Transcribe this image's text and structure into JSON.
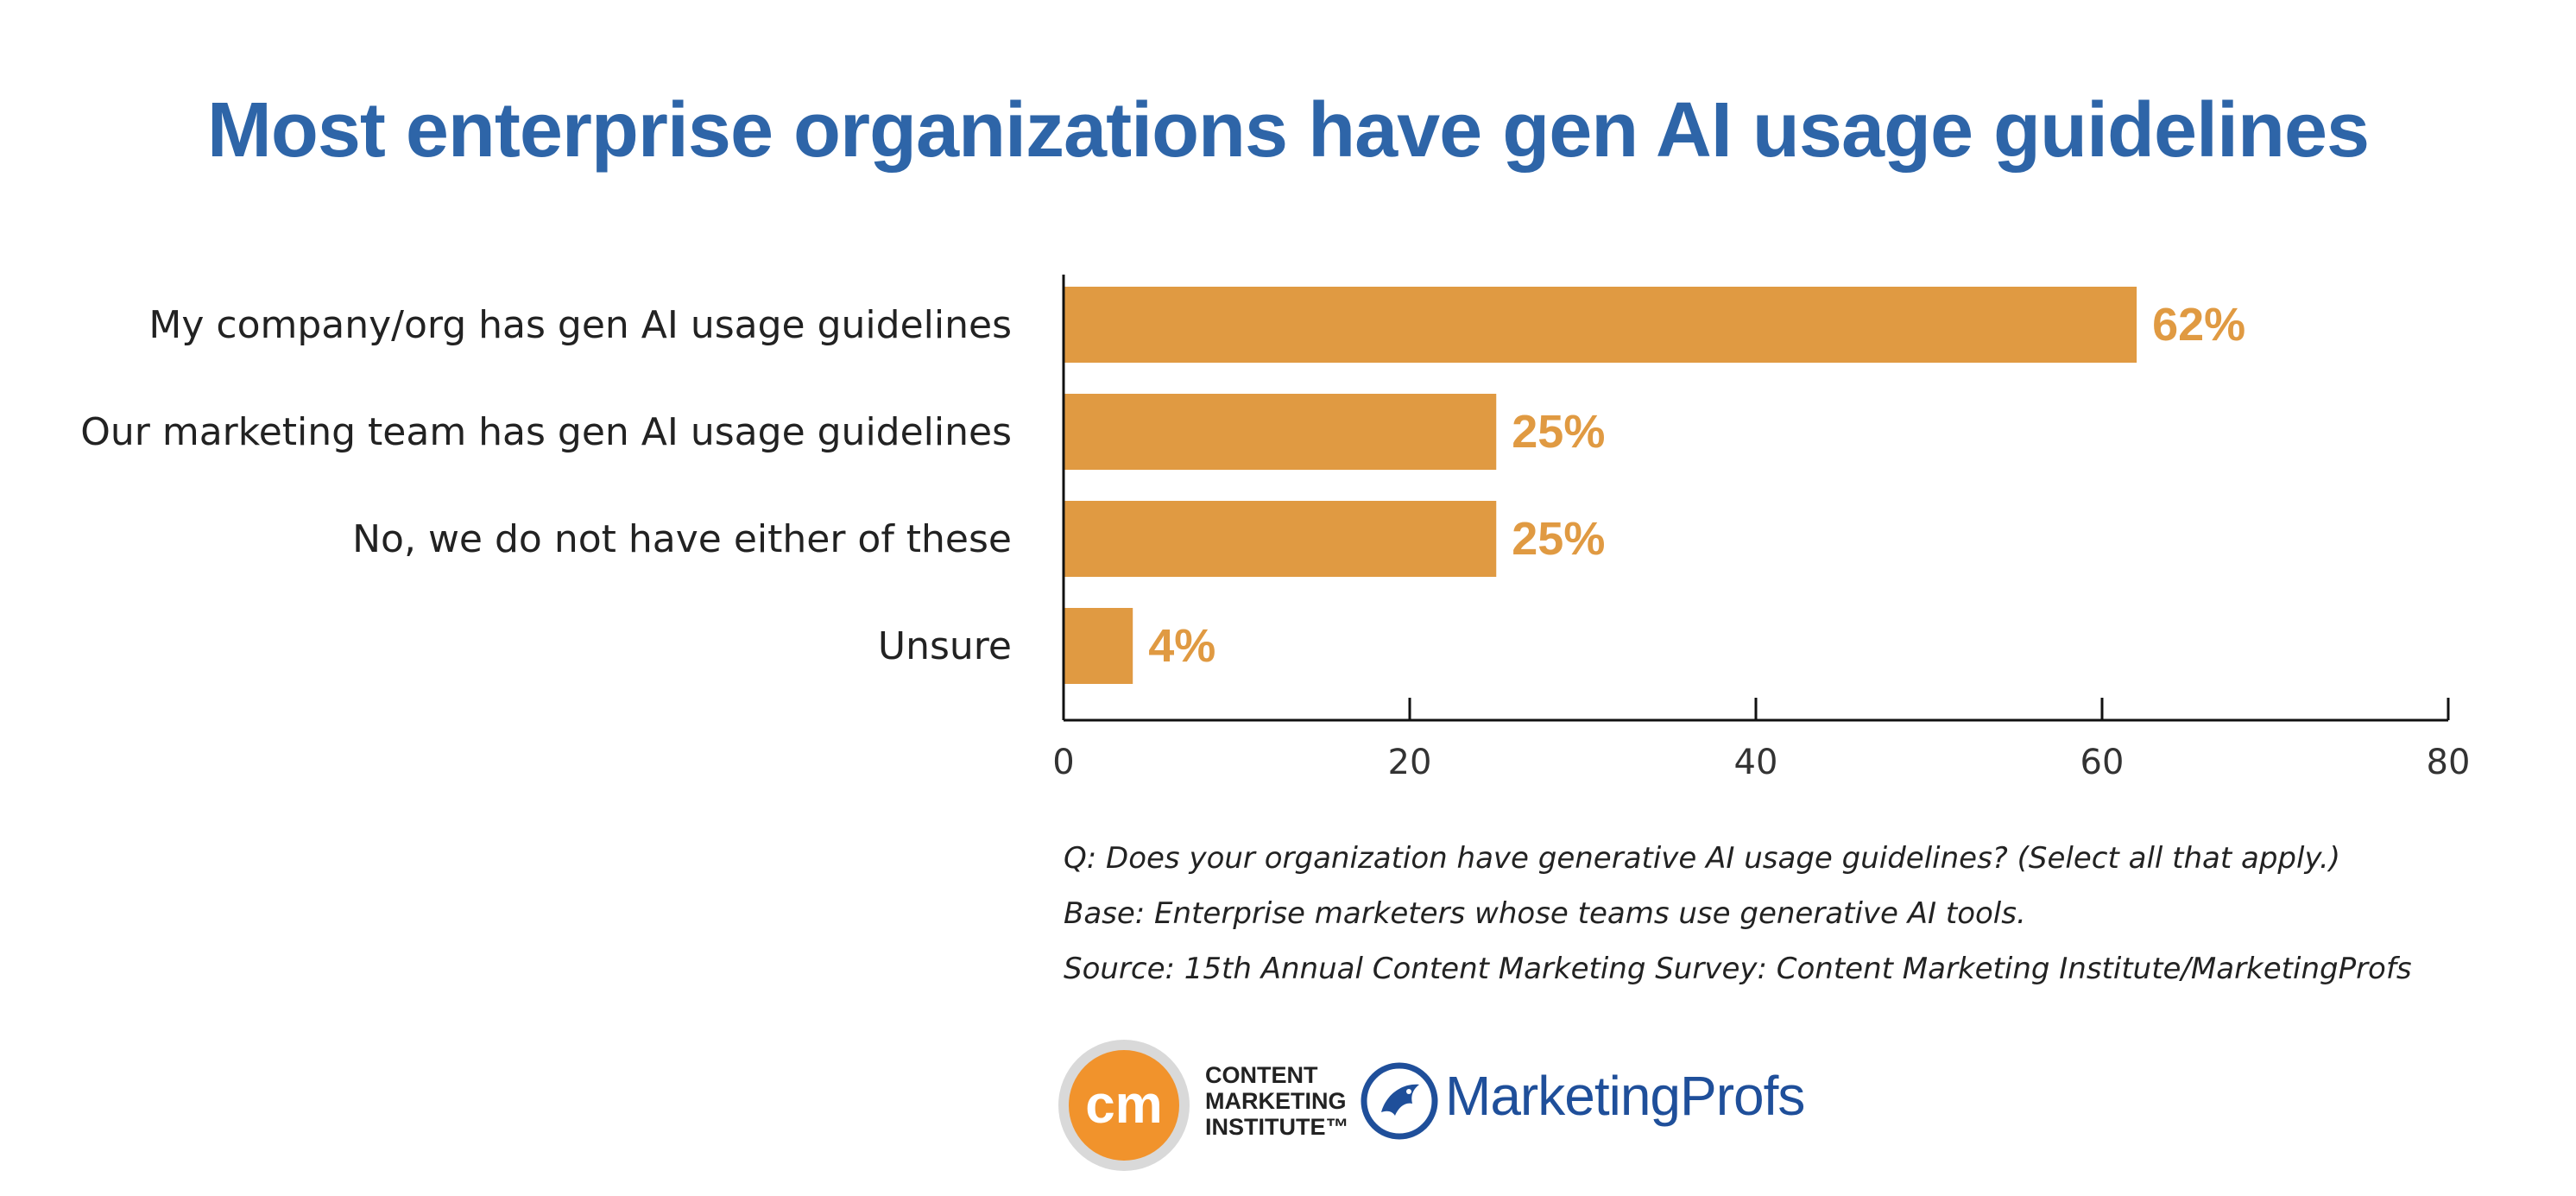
{
  "title": "Most enterprise organizations have gen AI usage guidelines",
  "chart_data": {
    "type": "bar",
    "orientation": "horizontal",
    "categories": [
      "My company/org has gen AI usage guidelines",
      "Our marketing team has gen AI usage guidelines",
      "No, we do not have either of these",
      "Unsure"
    ],
    "values": [
      62,
      25,
      25,
      4
    ],
    "value_labels": [
      "62%",
      "25%",
      "25%",
      "4%"
    ],
    "xlim": [
      0,
      80
    ],
    "xticks": [
      0,
      20,
      40,
      60,
      80
    ],
    "grid": false,
    "bar_color": "#e09a42",
    "label_color": "#e09a42"
  },
  "notes": {
    "question": "Q: Does your organization have generative AI usage guidelines? (Select all that apply.)",
    "base": "Base: Enterprise marketers whose teams use generative AI tools.",
    "source": "Source: 15th Annual Content Marketing Survey: Content Marketing Institute/MarketingProfs"
  },
  "logos": {
    "cmi_mark": "cm",
    "cmi_line1": "CONTENT",
    "cmi_line2": "MARKETING",
    "cmi_line3": "INSTITUTE™",
    "mp_name": "MarketingProfs"
  },
  "colors": {
    "title": "#2e65a8",
    "bar": "#e09a42",
    "cmi_orange": "#f1932c",
    "mp_blue": "#1f4f9a"
  }
}
